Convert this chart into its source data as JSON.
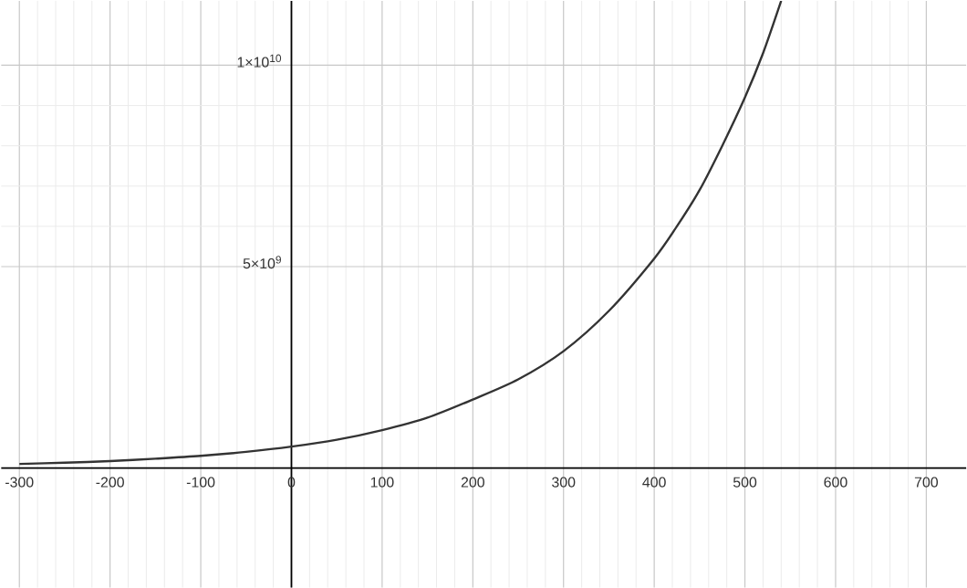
{
  "chart_data": {
    "type": "line",
    "x": [
      -300,
      -250,
      -200,
      -150,
      -100,
      -50,
      0,
      50,
      100,
      150,
      200,
      250,
      300,
      350,
      400,
      425,
      450,
      475,
      500,
      520,
      540
    ],
    "series": [
      {
        "color": "#333333",
        "values": [
          100000000.0,
          130000000.0,
          170000000.0,
          230000000.0,
          300000000.0,
          400000000.0,
          530000000.0,
          700000000.0,
          940000000.0,
          1250000000.0,
          1700000000.0,
          2200000000.0,
          2900000000.0,
          3900000000.0,
          5200000000.0,
          6000000000.0,
          6900000000.0,
          8000000000.0,
          9200000000.0,
          10300000000.0,
          11600000000.0
        ]
      }
    ],
    "xlim": [
      -320,
      744
    ],
    "ylim": [
      -2970000000.0,
      11600000000.0
    ],
    "xticks": [
      -300,
      -200,
      -100,
      0,
      100,
      200,
      300,
      400,
      500,
      600,
      700
    ],
    "yticks": [
      {
        "value": 5000000000,
        "label": "5×10$^{9}$"
      },
      {
        "value": 10000000000,
        "label": "1×10$^{10}$"
      }
    ],
    "grid": true,
    "marker": "none",
    "line_style": "solid"
  }
}
